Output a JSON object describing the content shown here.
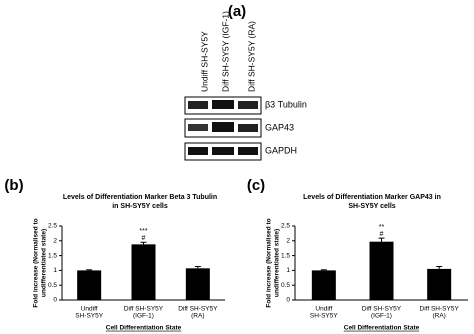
{
  "panel_a": {
    "label": "(a)",
    "lanes": [
      "Undiff SH-SY5Y",
      "Diff SH-SY5Y (IGF-1)",
      "Diff SH-SY5Y (RA)"
    ],
    "bands": [
      "β3 Tubulin",
      "GAP43",
      "GAPDH"
    ]
  },
  "chart_data": [
    {
      "type": "bar",
      "panel": "(b)",
      "title": [
        "Levels of Differentiation Marker Beta 3 Tubulin",
        "in SH-SY5Y cells"
      ],
      "ylabel": [
        "Fold increase (Normalised to",
        "undifferentiated state)"
      ],
      "xlabel": "Cell Differentiation State",
      "categories": [
        [
          "Undiff",
          "SH-SY5Y"
        ],
        [
          "Diff SH-SY5Y",
          "(IGF-1)"
        ],
        [
          "Diff SH-SY5Y",
          "(RA)"
        ]
      ],
      "values": [
        1.0,
        1.88,
        1.07
      ],
      "errors": [
        0.02,
        0.07,
        0.06
      ],
      "value_annotations": [
        [],
        [
          "***",
          "#"
        ],
        []
      ],
      "color": "#000000",
      "ylim": [
        0,
        2.5
      ],
      "yticks": [
        0,
        0.5,
        1,
        1.5,
        2,
        2.5
      ]
    },
    {
      "type": "bar",
      "panel": "(c)",
      "title": [
        "Levels of Differentiation Marker GAP43 in",
        "SH-SY5Y cells"
      ],
      "ylabel": [
        "Fold increase (Normalised to",
        "undifferentiated state)"
      ],
      "xlabel": "Cell Differentiation State",
      "categories": [
        [
          "Undiff",
          "SH-SY5Y"
        ],
        [
          "Diff SH-SY5Y",
          "(IGF-1)"
        ],
        [
          "Diff SH-SY5Y",
          "(RA)"
        ]
      ],
      "values": [
        1.0,
        1.97,
        1.05
      ],
      "errors": [
        0.02,
        0.12,
        0.08
      ],
      "value_annotations": [
        [],
        [
          "**",
          "#"
        ],
        []
      ],
      "color": "#000000",
      "ylim": [
        0,
        2.5
      ],
      "yticks": [
        0,
        0.5,
        1,
        1.5,
        2,
        2.5
      ]
    }
  ]
}
